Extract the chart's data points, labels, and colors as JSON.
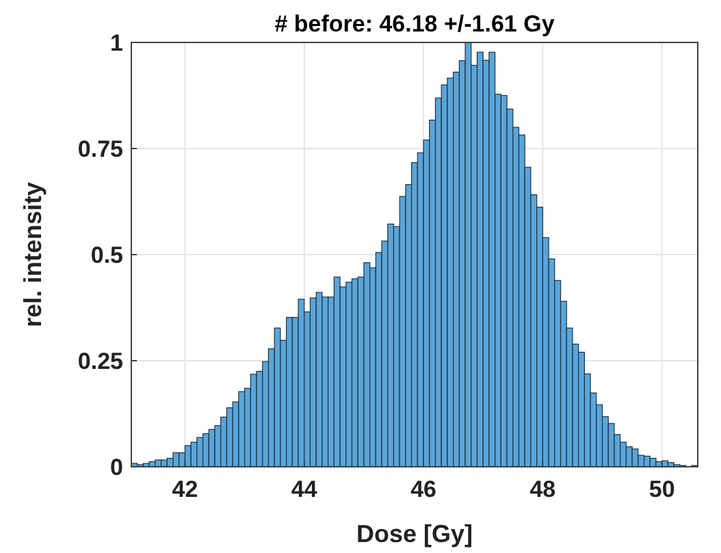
{
  "chart_data": {
    "type": "histogram",
    "title": "# before: 46.18 +/-1.61 Gy",
    "xlabel": "Dose [Gy]",
    "ylabel": "rel. intensity",
    "color": "#5aa5d8",
    "bins": [
      41.1,
      41.2,
      41.3,
      41.4,
      41.5,
      41.6,
      41.7,
      41.8,
      41.9,
      42.0,
      42.1,
      42.2,
      42.3,
      42.4,
      42.5,
      42.6,
      42.7,
      42.8,
      42.9,
      43.0,
      43.1,
      43.2,
      43.3,
      43.4,
      43.5,
      43.6,
      43.7,
      43.8,
      43.9,
      44.0,
      44.1,
      44.2,
      44.3,
      44.4,
      44.5,
      44.6,
      44.7,
      44.8,
      44.9,
      45.0,
      45.1,
      45.2,
      45.3,
      45.4,
      45.5,
      45.6,
      45.7,
      45.8,
      45.9,
      46.0,
      46.1,
      46.2,
      46.3,
      46.4,
      46.5,
      46.6,
      46.7,
      46.8,
      46.9,
      47.0,
      47.1,
      47.2,
      47.3,
      47.4,
      47.5,
      47.6,
      47.7,
      47.8,
      47.9,
      48.0,
      48.1,
      48.2,
      48.3,
      48.4,
      48.5,
      48.6,
      48.7,
      48.8,
      48.9,
      49.0,
      49.1,
      49.2,
      49.3,
      49.4,
      49.5,
      49.6,
      49.7,
      49.8,
      49.9,
      50.0,
      50.1,
      50.2,
      50.3,
      50.4,
      50.5,
      50.6
    ],
    "values": [
      0.008,
      0.005,
      0.008,
      0.012,
      0.016,
      0.016,
      0.02,
      0.033,
      0.033,
      0.05,
      0.058,
      0.069,
      0.078,
      0.088,
      0.097,
      0.117,
      0.139,
      0.153,
      0.177,
      0.185,
      0.218,
      0.225,
      0.248,
      0.278,
      0.327,
      0.298,
      0.352,
      0.352,
      0.395,
      0.365,
      0.398,
      0.411,
      0.4,
      0.4,
      0.447,
      0.424,
      0.435,
      0.443,
      0.447,
      0.481,
      0.469,
      0.505,
      0.532,
      0.572,
      0.566,
      0.637,
      0.665,
      0.717,
      0.74,
      0.77,
      0.817,
      0.869,
      0.9,
      0.916,
      0.93,
      0.957,
      1.0,
      0.946,
      0.977,
      0.958,
      0.977,
      0.878,
      0.875,
      0.843,
      0.8,
      0.782,
      0.706,
      0.641,
      0.612,
      0.54,
      0.49,
      0.439,
      0.39,
      0.327,
      0.289,
      0.27,
      0.219,
      0.174,
      0.146,
      0.118,
      0.102,
      0.076,
      0.058,
      0.047,
      0.042,
      0.027,
      0.025,
      0.02,
      0.012,
      0.014,
      0.01,
      0.005,
      0.003,
      0.0,
      0.003
    ],
    "xlim": [
      41.1,
      50.6
    ],
    "xticks": [
      42,
      44,
      46,
      48,
      50
    ],
    "ylim": [
      0,
      1
    ],
    "yticks": [
      0,
      {
        "value": 0.25,
        "label": "0.25"
      },
      0.5,
      {
        "value": 0.75,
        "label": "0.75"
      },
      1
    ],
    "grid": true
  }
}
